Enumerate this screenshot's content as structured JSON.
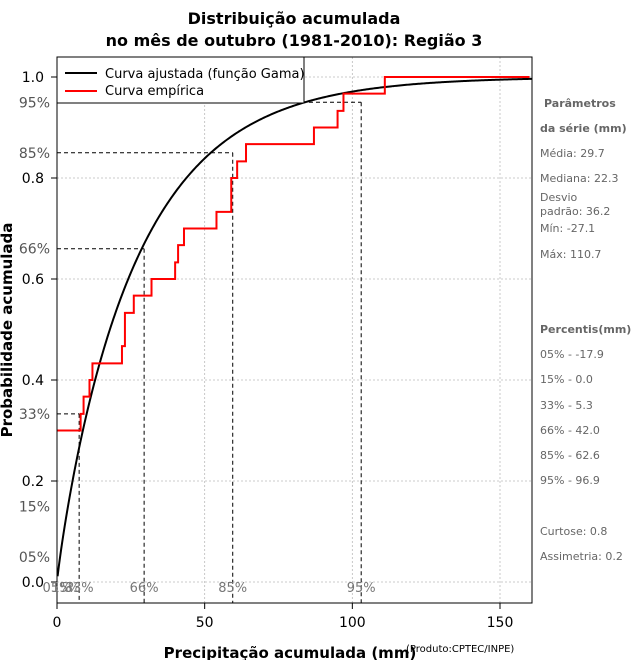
{
  "chart_data": {
    "type": "line",
    "title": "Distribuição acumulada",
    "subtitle": "no mês de outubro (1981-2010): Região 3",
    "xlabel": "Precipitação acumulada (mm)",
    "ylabel": "Probabilidade acumulada",
    "credit": "(Produto:CPTEC/INPE)",
    "xlim": [
      0,
      160
    ],
    "ylim": [
      0,
      1
    ],
    "x_ticks": [
      "0",
      "50",
      "100",
      "150"
    ],
    "y_ticks": [
      "0.0",
      "0.2",
      "0.4",
      "0.6",
      "0.8",
      "1.0"
    ],
    "grid": true,
    "legend_position": "top-left",
    "series": [
      {
        "name": "Curva ajustada (função Gama)",
        "color": "#000000",
        "shape": 0.9,
        "scale": 30
      },
      {
        "name": "Curva empírica",
        "color": "#ff0000",
        "x": [
          0,
          8,
          9,
          11,
          12,
          22,
          23,
          26,
          32,
          40,
          41,
          43,
          54,
          59,
          61,
          64,
          87,
          95,
          97,
          111,
          160
        ],
        "y": [
          0.3,
          0.333,
          0.367,
          0.4,
          0.433,
          0.467,
          0.533,
          0.567,
          0.6,
          0.633,
          0.667,
          0.7,
          0.733,
          0.8,
          0.833,
          0.867,
          0.9,
          0.933,
          0.967,
          1.0,
          1.0
        ]
      }
    ],
    "percentile_marks": [
      {
        "label": "05%",
        "p": 0.05,
        "x": 0
      },
      {
        "label": "15%",
        "p": 0.15,
        "x": 1
      },
      {
        "label": "33%",
        "p": 0.333,
        "x": 7.5
      },
      {
        "label": "66%",
        "p": 0.66,
        "x": 29.5
      },
      {
        "label": "85%",
        "p": 0.85,
        "x": 59.5
      },
      {
        "label": "95%",
        "p": 0.95,
        "x": 103
      }
    ],
    "bottom_labels": [
      {
        "label": "05%",
        "x": 0
      },
      {
        "label": "15%",
        "x": 3
      },
      {
        "label": "33%",
        "x": 7.5
      },
      {
        "label": "66%",
        "x": 29.5
      },
      {
        "label": "85%",
        "x": 59.5
      },
      {
        "label": "95%",
        "x": 103
      }
    ],
    "side_panel": {
      "params_title_1": "Parâmetros",
      "params_title_2": "da série (mm)",
      "media": "Média: 29.7",
      "mediana": "Mediana: 22.3",
      "desvio_1": "Desvio",
      "desvio_2": "padrão: 36.2",
      "min": "Mín: -27.1",
      "max": "Máx: 110.7",
      "percentis_title": "Percentis(mm)",
      "p05": "05% - -17.9",
      "p15": "15% - 0.0",
      "p33": "33% - 5.3",
      "p66": "66% - 42.0",
      "p85": "85% - 62.6",
      "p95": "95% - 96.9",
      "curtose": "Curtose: 0.8",
      "assimetria": "Assimetria: 0.2"
    }
  }
}
